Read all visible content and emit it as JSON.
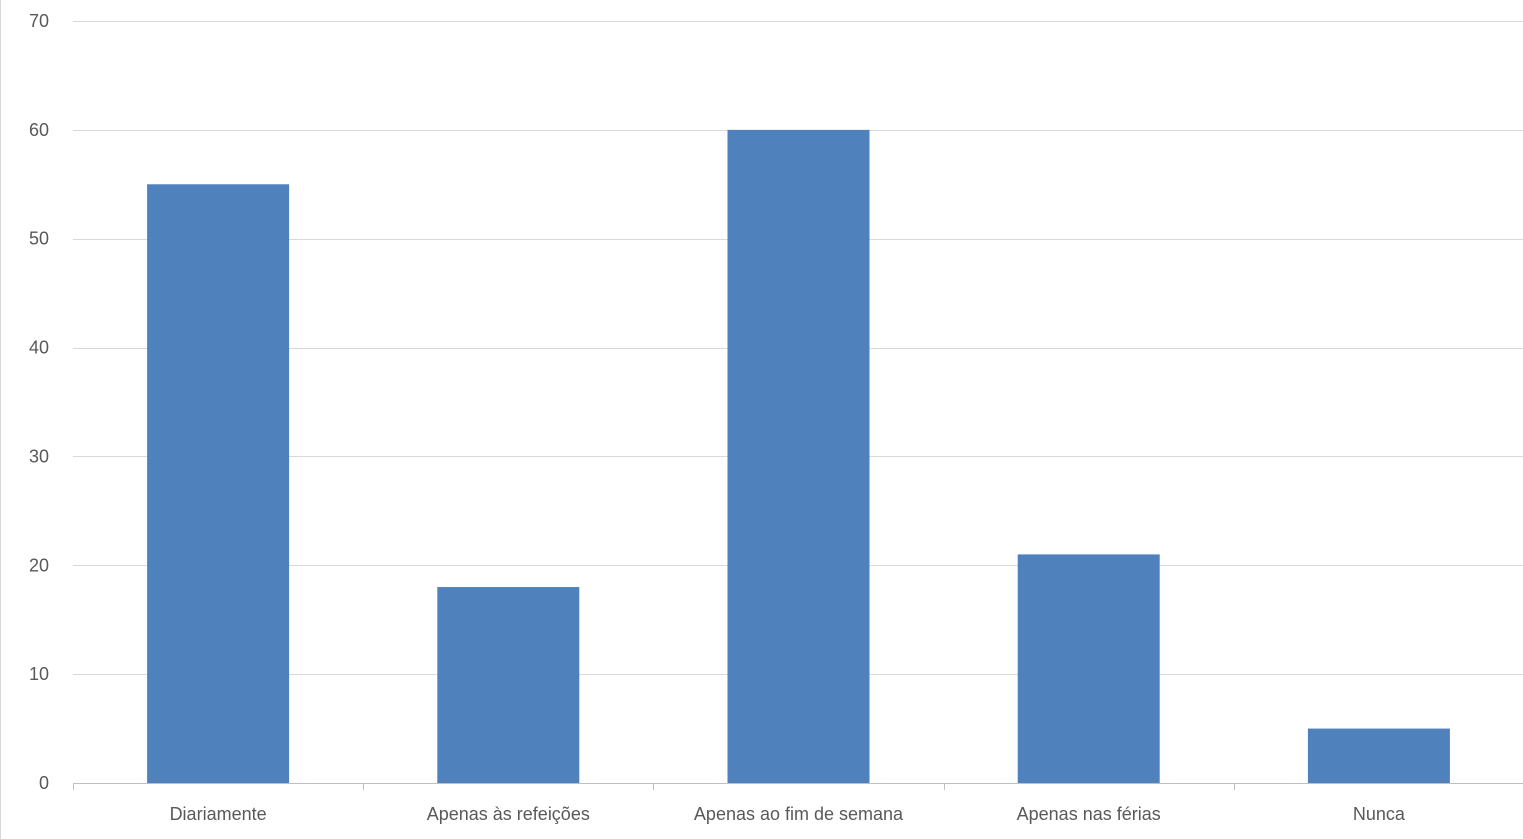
{
  "chart_data": {
    "type": "bar",
    "categories": [
      "Diariamente",
      "Apenas às refeições",
      "Apenas ao fim de semana",
      "Apenas nas férias",
      "Nunca"
    ],
    "values": [
      55,
      18,
      60,
      21,
      5
    ],
    "title": "",
    "xlabel": "",
    "ylabel": "",
    "ylim": [
      0,
      70
    ],
    "yticks": [
      0,
      10,
      20,
      30,
      40,
      50,
      60,
      70
    ],
    "grid": true,
    "legend": "none",
    "colors": {
      "bar": "#4f81bd",
      "grid": "#d9d9d9",
      "axis": "#bfbfbf",
      "label": "#595959"
    }
  }
}
